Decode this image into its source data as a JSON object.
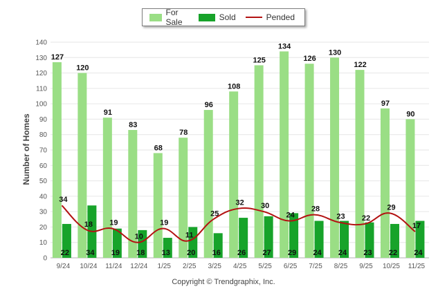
{
  "legend": {
    "items": [
      {
        "label": "For Sale",
        "color": "#9ade85",
        "kind": "bar"
      },
      {
        "label": "Sold",
        "color": "#17a32a",
        "kind": "bar"
      },
      {
        "label": "Pended",
        "color": "#b31212",
        "kind": "line"
      }
    ]
  },
  "footer": {
    "copyright": "Copyright © Trendgraphix, Inc."
  },
  "chart_data": {
    "type": "bar",
    "ylabel": "Number of Homes",
    "xlabel": "",
    "ylim": [
      0,
      140
    ],
    "yticks": [
      0,
      10,
      20,
      30,
      40,
      50,
      60,
      70,
      80,
      90,
      100,
      110,
      120,
      130,
      140
    ],
    "grid": true,
    "legend_position": "top-center",
    "categories": [
      "9/24",
      "10/24",
      "11/24",
      "12/24",
      "1/25",
      "2/25",
      "3/25",
      "4/25",
      "5/25",
      "6/25",
      "7/25",
      "8/25",
      "9/25",
      "10/25",
      "11/25"
    ],
    "series": [
      {
        "name": "For Sale",
        "type": "bar",
        "color": "#9ade85",
        "values": [
          127,
          120,
          91,
          83,
          68,
          78,
          96,
          108,
          125,
          134,
          126,
          130,
          122,
          97,
          90
        ]
      },
      {
        "name": "Sold",
        "type": "bar",
        "color": "#17a32a",
        "values": [
          22,
          34,
          19,
          18,
          13,
          20,
          16,
          26,
          27,
          29,
          24,
          24,
          23,
          22,
          24
        ]
      },
      {
        "name": "Pended",
        "type": "line",
        "color": "#b31212",
        "values": [
          34,
          18,
          19,
          10,
          19,
          11,
          25,
          32,
          30,
          24,
          28,
          23,
          22,
          29,
          17
        ]
      }
    ]
  }
}
